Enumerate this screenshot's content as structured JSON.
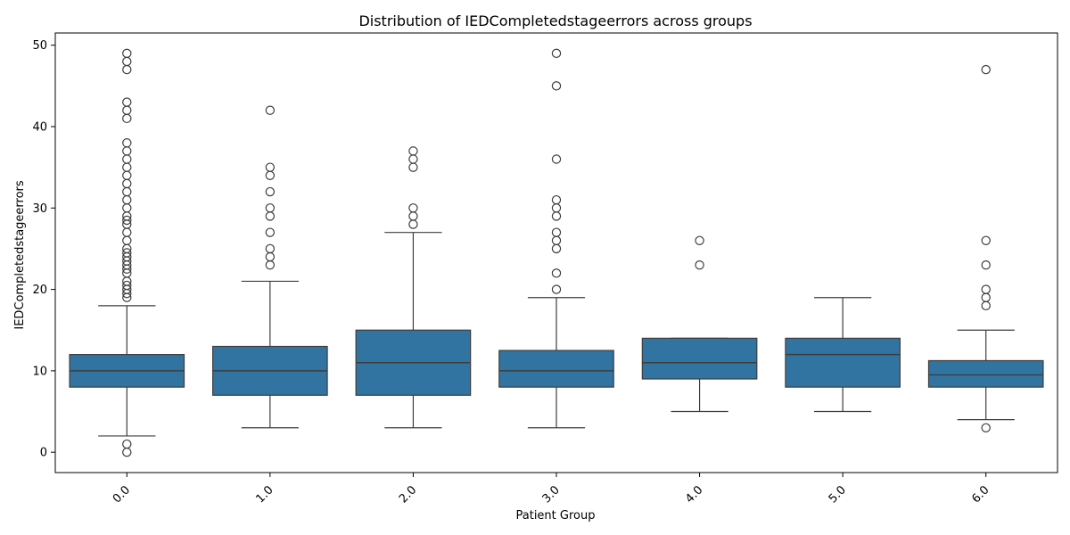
{
  "chart_data": {
    "type": "box",
    "title": "Distribution of IEDCompletedstageerrors across groups",
    "xlabel": "Patient Group",
    "ylabel": "IEDCompletedstageerrors",
    "ylim": [
      -2.5,
      51.5
    ],
    "yticks": [
      0,
      10,
      20,
      30,
      40,
      50
    ],
    "grid": false,
    "box_color": "#3274a1",
    "line_color": "#3d3d3d",
    "categories": [
      "0.0",
      "1.0",
      "2.0",
      "3.0",
      "4.0",
      "5.0",
      "6.0"
    ],
    "boxes": [
      {
        "category": "0.0",
        "whisker_low": 2,
        "q1": 8,
        "median": 10,
        "q3": 12,
        "whisker_high": 18,
        "outliers": [
          0,
          1,
          19,
          19.5,
          20,
          20.5,
          21,
          22,
          22.5,
          23,
          23.5,
          24,
          24.5,
          25,
          26,
          27,
          28,
          28.5,
          29,
          30,
          31,
          32,
          33,
          34,
          35,
          36,
          37,
          38,
          41,
          42,
          43,
          47,
          48,
          49
        ]
      },
      {
        "category": "1.0",
        "whisker_low": 3,
        "q1": 7,
        "median": 10,
        "q3": 13,
        "whisker_high": 21,
        "outliers": [
          23,
          24,
          25,
          27,
          29,
          30,
          32,
          34,
          35,
          42
        ]
      },
      {
        "category": "2.0",
        "whisker_low": 3,
        "q1": 7,
        "median": 11,
        "q3": 15,
        "whisker_high": 27,
        "outliers": [
          28,
          29,
          30,
          35,
          36,
          37
        ]
      },
      {
        "category": "3.0",
        "whisker_low": 3,
        "q1": 8,
        "median": 10,
        "q3": 12.5,
        "whisker_high": 19,
        "outliers": [
          20,
          22,
          25,
          26,
          27,
          29,
          30,
          31,
          36,
          45,
          49
        ]
      },
      {
        "category": "4.0",
        "whisker_low": 5,
        "q1": 9,
        "median": 11,
        "q3": 14,
        "whisker_high": 14,
        "outliers": [
          23,
          26
        ]
      },
      {
        "category": "5.0",
        "whisker_low": 5,
        "q1": 8,
        "median": 12,
        "q3": 14,
        "whisker_high": 19,
        "outliers": []
      },
      {
        "category": "6.0",
        "whisker_low": 4,
        "q1": 8,
        "median": 9.5,
        "q3": 11.25,
        "whisker_high": 15,
        "outliers": [
          3,
          18,
          19,
          20,
          23,
          26,
          47
        ]
      }
    ]
  }
}
